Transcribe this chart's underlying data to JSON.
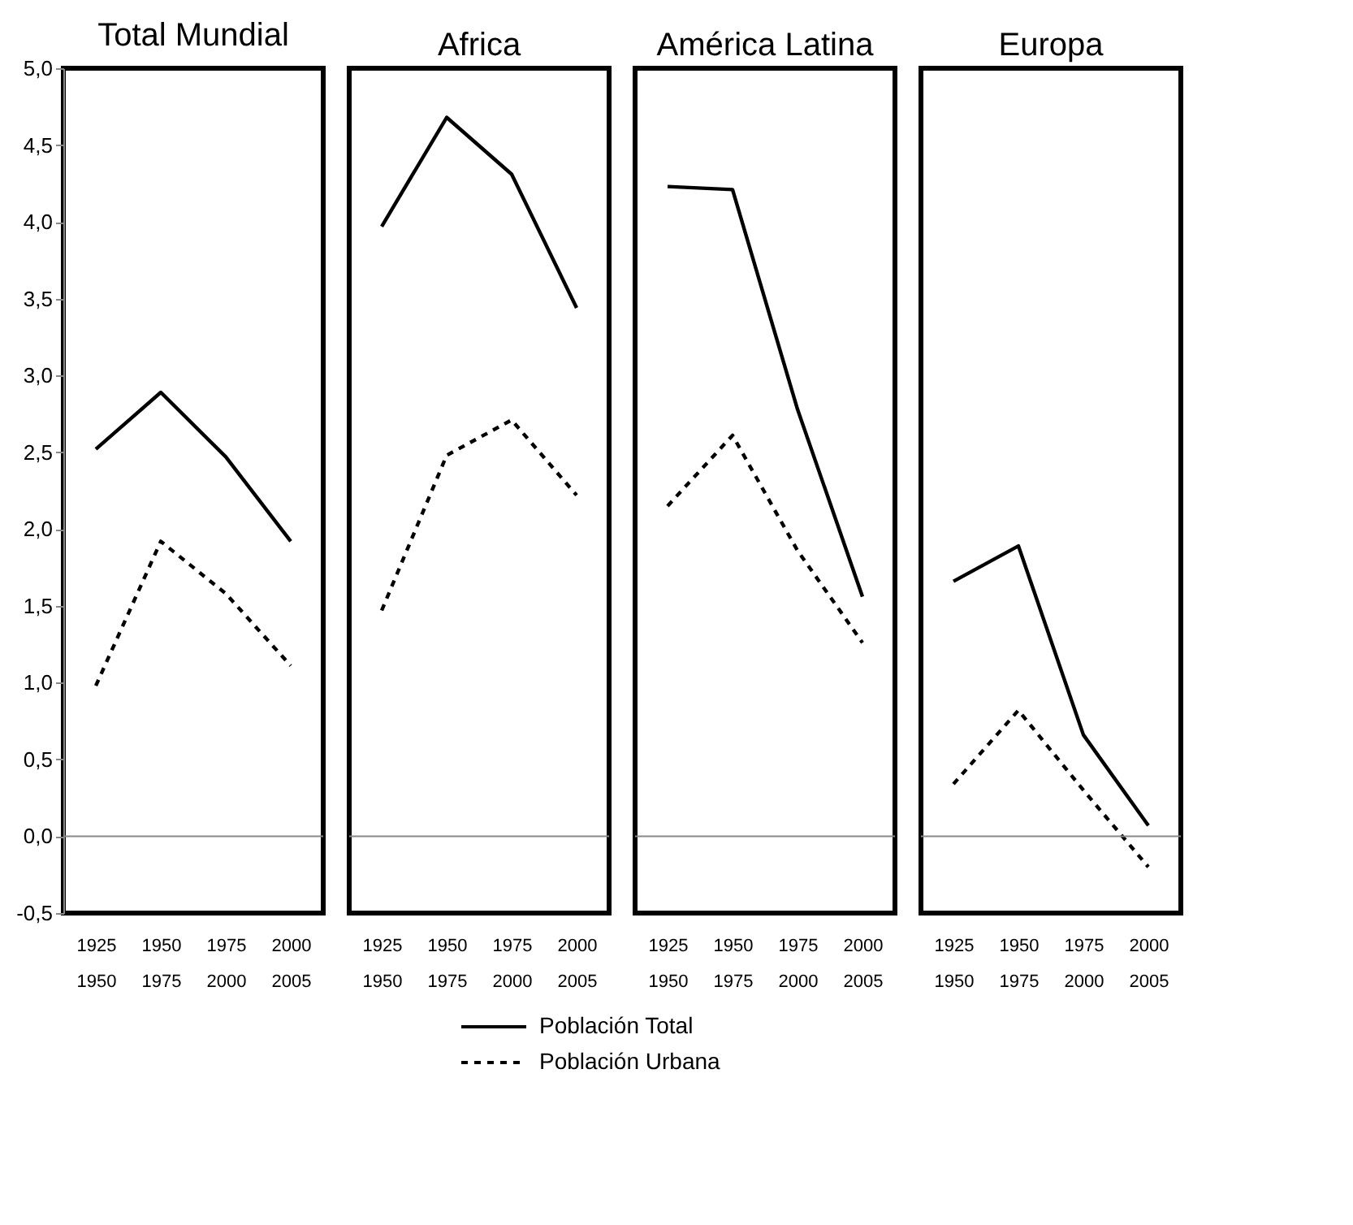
{
  "chart_data": [
    {
      "type": "line",
      "title": "Total Mundial",
      "categories": [
        "1925\n1950",
        "1950\n1975",
        "1975\n2000",
        "2000\n2005"
      ],
      "series": [
        {
          "name": "Población Total",
          "color": "#000000",
          "line_style": "solid",
          "values": [
            2.52,
            2.89,
            2.47,
            1.92
          ]
        },
        {
          "name": "Población Urbana",
          "color": "#000000",
          "line_style": "dashed",
          "values": [
            0.98,
            1.92,
            1.58,
            1.11
          ]
        }
      ],
      "ylim": [
        -0.5,
        5.0
      ],
      "yticks": [
        {
          "value": -0.5,
          "label": "-0,5"
        },
        {
          "value": 0,
          "label": "0,0"
        },
        {
          "value": 0.5,
          "label": "0,5"
        },
        {
          "value": 1,
          "label": "1,0"
        },
        {
          "value": 1.5,
          "label": "1,5"
        },
        {
          "value": 2,
          "label": "2,0"
        },
        {
          "value": 2.5,
          "label": "2,5"
        },
        {
          "value": 3,
          "label": "3,0"
        },
        {
          "value": 3.5,
          "label": "3,5"
        },
        {
          "value": 4,
          "label": "4,0"
        },
        {
          "value": 4.5,
          "label": "4,5"
        },
        {
          "value": 5,
          "label": "5,0"
        }
      ],
      "ref_lines": [
        {
          "axis": "y",
          "value": 0
        }
      ],
      "legend": "bottom",
      "grid": false
    },
    {
      "type": "line",
      "title": "Africa",
      "categories": [
        "1925\n1950",
        "1950\n1975",
        "1975\n2000",
        "2000\n2005"
      ],
      "series": [
        {
          "name": "Población Total",
          "color": "#000000",
          "line_style": "solid",
          "values": [
            3.97,
            4.68,
            4.31,
            3.44
          ]
        },
        {
          "name": "Población Urbana",
          "color": "#000000",
          "line_style": "dashed",
          "values": [
            1.47,
            2.48,
            2.71,
            2.22
          ]
        }
      ],
      "ylim": [
        -0.5,
        5.0
      ],
      "tick_labels": "x",
      "ref_lines": [
        {
          "axis": "y",
          "value": 0
        }
      ],
      "grid": false
    },
    {
      "type": "line",
      "title": "América Latina",
      "categories": [
        "1925\n1950",
        "1950\n1975",
        "1975\n2000",
        "2000\n2005"
      ],
      "series": [
        {
          "name": "Población Total",
          "color": "#000000",
          "line_style": "solid",
          "values": [
            4.23,
            4.21,
            2.78,
            1.56
          ]
        },
        {
          "name": "Población Urbana",
          "color": "#000000",
          "line_style": "dashed",
          "values": [
            2.15,
            2.61,
            1.86,
            1.26
          ]
        }
      ],
      "ylim": [
        -0.5,
        5.0
      ],
      "tick_labels": "x",
      "ref_lines": [
        {
          "axis": "y",
          "value": 0
        }
      ],
      "grid": false
    },
    {
      "type": "line",
      "title": "Europa",
      "categories": [
        "1925\n1950",
        "1950\n1975",
        "1975\n2000",
        "2000\n2005"
      ],
      "series": [
        {
          "name": "Población Total",
          "color": "#000000",
          "line_style": "solid",
          "values": [
            1.66,
            1.89,
            0.66,
            0.07
          ]
        },
        {
          "name": "Población Urbana",
          "color": "#000000",
          "line_style": "dashed",
          "values": [
            0.34,
            0.82,
            0.3,
            -0.2
          ]
        }
      ],
      "ylim": [
        -0.5,
        5.0
      ],
      "tick_labels": "x",
      "ref_lines": [
        {
          "axis": "y",
          "value": 0
        }
      ],
      "grid": false
    }
  ]
}
